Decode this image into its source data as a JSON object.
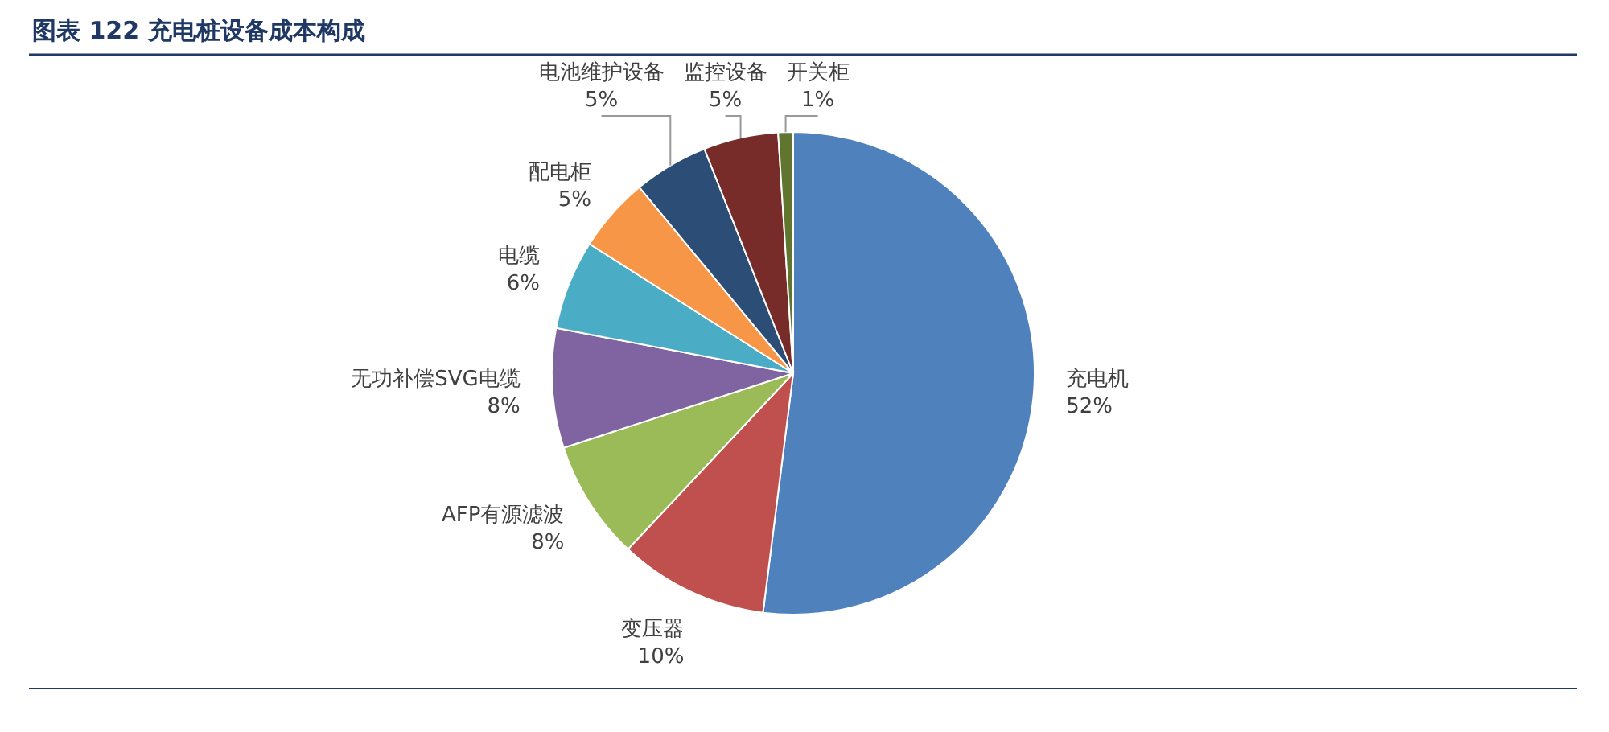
{
  "chart_data": {
    "type": "pie",
    "title": "图表 122 充电桩设备成本构成",
    "categories": [
      "充电机",
      "变压器",
      "AFP有源滤波",
      "无功补偿SVG电缆",
      "电缆",
      "配电柜",
      "电池维护设备",
      "监控设备",
      "开关柜"
    ],
    "values": [
      52,
      10,
      8,
      8,
      6,
      5,
      5,
      5,
      1
    ],
    "value_labels": [
      "52%",
      "10%",
      "8%",
      "8%",
      "6%",
      "5%",
      "5%",
      "5%",
      "1%"
    ],
    "colors": [
      "#4f81bd",
      "#c0504d",
      "#9bbb59",
      "#8064a2",
      "#4bacc6",
      "#f79646",
      "#2c4d75",
      "#772c2a",
      "#5f7530"
    ]
  }
}
